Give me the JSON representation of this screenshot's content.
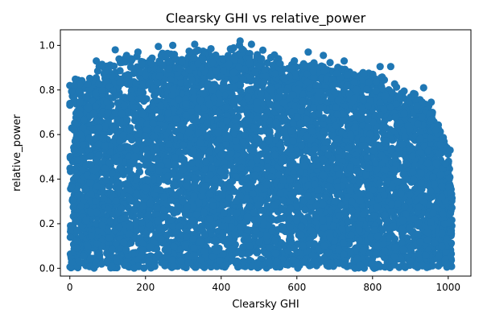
{
  "chart_data": {
    "type": "scatter",
    "title": "Clearsky GHI vs relative_power",
    "xlabel": "Clearsky GHI",
    "ylabel": "relative_power",
    "xlim": [
      -25,
      1060
    ],
    "ylim": [
      -0.035,
      1.07
    ],
    "xticks": [
      0,
      200,
      400,
      600,
      800,
      1000
    ],
    "yticks": [
      0.0,
      0.2,
      0.4,
      0.6,
      0.8,
      1.0
    ],
    "x_tick_labels": [
      "0",
      "200",
      "400",
      "600",
      "800",
      "1000"
    ],
    "y_tick_labels": [
      "0.0",
      "0.2",
      "0.4",
      "0.6",
      "0.8",
      "1.0"
    ],
    "grid": false,
    "marker_color": "#1f77b4",
    "envelope": {
      "x": [
        0,
        50,
        100,
        150,
        200,
        250,
        300,
        350,
        400,
        450,
        500,
        550,
        600,
        650,
        700,
        750,
        800,
        850,
        900,
        950,
        1000,
        1010
      ],
      "upper": [
        0.87,
        0.88,
        0.93,
        0.96,
        0.97,
        0.99,
        1.0,
        0.99,
        0.98,
        1.02,
        1.0,
        0.96,
        0.94,
        0.95,
        0.93,
        0.9,
        0.9,
        0.85,
        0.8,
        0.75,
        0.55,
        0.33
      ]
    },
    "points": [
      {
        "x": 450,
        "y": 1.02
      },
      {
        "x": 480,
        "y": 1.005
      },
      {
        "x": 330,
        "y": 1.005
      },
      {
        "x": 272,
        "y": 1.0
      },
      {
        "x": 234,
        "y": 0.995
      },
      {
        "x": 373,
        "y": 0.985
      },
      {
        "x": 120,
        "y": 0.98
      },
      {
        "x": 180,
        "y": 0.97
      },
      {
        "x": 150,
        "y": 0.955
      },
      {
        "x": 630,
        "y": 0.97
      },
      {
        "x": 670,
        "y": 0.955
      },
      {
        "x": 725,
        "y": 0.93
      },
      {
        "x": 820,
        "y": 0.905
      },
      {
        "x": 848,
        "y": 0.905
      },
      {
        "x": 70,
        "y": 0.93
      },
      {
        "x": 85,
        "y": 0.915
      },
      {
        "x": 935,
        "y": 0.81
      },
      {
        "x": 955,
        "y": 0.745
      },
      {
        "x": 912,
        "y": 0.78
      },
      {
        "x": 967,
        "y": 0.62
      },
      {
        "x": 985,
        "y": 0.58
      },
      {
        "x": 997,
        "y": 0.54
      },
      {
        "x": 1005,
        "y": 0.53
      },
      {
        "x": 1003,
        "y": 0.405
      },
      {
        "x": 1010,
        "y": 0.315
      },
      {
        "x": 990,
        "y": 0.2
      },
      {
        "x": 983,
        "y": 0.1
      },
      {
        "x": 975,
        "y": 0.055
      },
      {
        "x": 600,
        "y": 0.37
      },
      {
        "x": 440,
        "y": 0.3
      },
      {
        "x": 300,
        "y": 0.555
      },
      {
        "x": 220,
        "y": 0.65
      }
    ]
  }
}
